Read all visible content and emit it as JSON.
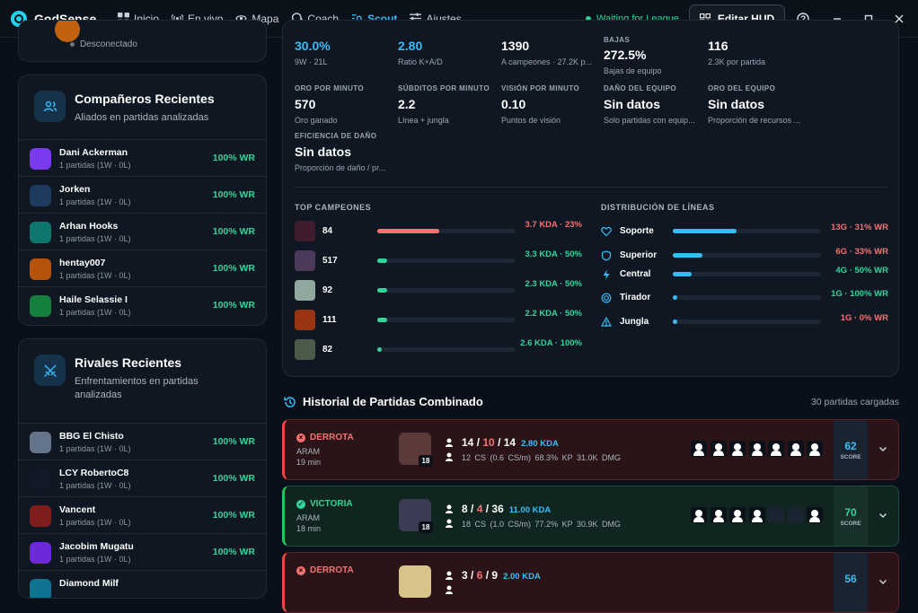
{
  "app": {
    "name": "GodSense",
    "status": "Waiting for League",
    "edit_hud": "Editar HUD"
  },
  "nav": [
    {
      "label": "Inicio",
      "icon": "grid-icon"
    },
    {
      "label": "En vivo",
      "icon": "broadcast-icon"
    },
    {
      "label": "Mapa",
      "icon": "eye-icon"
    },
    {
      "label": "Coach",
      "icon": "brain-icon"
    },
    {
      "label": "Scout",
      "icon": "scout-icon",
      "active": true
    },
    {
      "label": "Ajustes",
      "icon": "sliders-icon"
    }
  ],
  "profile": {
    "status": "Desconectado"
  },
  "allies": {
    "title": "Compañeros Recientes",
    "subtitle": "Aliados en partidas analizadas",
    "items": [
      {
        "name": "Dani Ackerman",
        "meta": "1 partidas (1W · 0L)",
        "wr": "100% WR",
        "color": "#7c3aed"
      },
      {
        "name": "Jorken",
        "meta": "1 partidas (1W · 0L)",
        "wr": "100% WR",
        "color": "#1e3a5f"
      },
      {
        "name": "Arhan Hooks",
        "meta": "1 partidas (1W · 0L)",
        "wr": "100% WR",
        "color": "#0f766e"
      },
      {
        "name": "hentay007",
        "meta": "1 partidas (1W · 0L)",
        "wr": "100% WR",
        "color": "#b45309"
      },
      {
        "name": "Haile Selassie I",
        "meta": "1 partidas (1W · 0L)",
        "wr": "100% WR",
        "color": "#15803d"
      }
    ]
  },
  "rivals": {
    "title": "Rivales Recientes",
    "subtitle": "Enfrentamientos en partidas analizadas",
    "items": [
      {
        "name": "BBG El Chisto",
        "meta": "1 partidas (1W · 0L)",
        "wr": "100% WR",
        "color": "#64748b"
      },
      {
        "name": "LCY RobertoC8",
        "meta": "1 partidas (1W · 0L)",
        "wr": "100% WR",
        "color": "#111827"
      },
      {
        "name": "Vancent",
        "meta": "1 partidas (1W · 0L)",
        "wr": "100% WR",
        "color": "#7f1d1d"
      },
      {
        "name": "Jacobim Mugatu",
        "meta": "1 partidas (1W · 0L)",
        "wr": "100% WR",
        "color": "#6d28d9"
      },
      {
        "name": "Diamond Milf",
        "meta": "",
        "wr": "",
        "color": "#0e7490"
      }
    ]
  },
  "stats": {
    "winrate": {
      "value": "30.0%",
      "sub": "9W · 21L"
    },
    "ratio": {
      "value": "2.80",
      "sub": "Ratio K+A/D"
    },
    "champs": {
      "value": "1390",
      "sub": "A campeones · 27.2K p..."
    },
    "bajas": {
      "label": "BAJAS",
      "value": "272.5%",
      "sub": "Bajas de equipo"
    },
    "partida": {
      "value": "116",
      "sub": "2.3K por partida"
    },
    "oro_min": {
      "label": "ORO POR MINUTO",
      "value": "570",
      "sub": "Oro ganado"
    },
    "subditos": {
      "label": "SÚBDITOS POR MINUTO",
      "value": "2.2",
      "sub": "Línea + jungla"
    },
    "vision": {
      "label": "VISIÓN POR MINUTO",
      "value": "0.10",
      "sub": "Puntos de visión"
    },
    "dano": {
      "label": "DAÑO DEL EQUIPO",
      "value": "Sin datos",
      "sub": "Solo partidas con equip..."
    },
    "oro_eq": {
      "label": "ORO DEL EQUIPO",
      "value": "Sin datos",
      "sub": "Proporción de recursos ..."
    },
    "eficiencia": {
      "label": "EFICIENCIA DE DAÑO",
      "value": "Sin datos",
      "sub": "Proporción de daño / pr..."
    }
  },
  "top_champs": {
    "title": "TOP CAMPEONES",
    "items": [
      {
        "games": "84",
        "kda": "3.7 KDA · 23%",
        "fill": 0.45,
        "bar": "#f87171",
        "kda_color": "red",
        "color": "#3f1d2e"
      },
      {
        "games": "517",
        "kda": "3.3 KDA · 50%",
        "fill": 0.07,
        "bar": "#34d399",
        "kda_color": "green",
        "color": "#4b3a5a"
      },
      {
        "games": "92",
        "kda": "2.3 KDA · 50%",
        "fill": 0.07,
        "bar": "#34d399",
        "kda_color": "green",
        "color": "#8fa79c"
      },
      {
        "games": "111",
        "kda": "2.2 KDA · 50%",
        "fill": 0.07,
        "bar": "#34d399",
        "kda_color": "green",
        "color": "#9a3412"
      },
      {
        "games": "82",
        "kda": "2.6 KDA · 100%",
        "fill": 0.03,
        "bar": "#34d399",
        "kda_color": "green",
        "color": "#4b5b4a"
      }
    ]
  },
  "lanes": {
    "title": "DISTRIBUCIÓN DE LÍNEAS",
    "items": [
      {
        "name": "Soporte",
        "value": "13G · 31% WR",
        "fill": 0.43,
        "val_color": "red",
        "icon": "heart-icon"
      },
      {
        "name": "Superior",
        "value": "6G · 33% WR",
        "fill": 0.2,
        "val_color": "red",
        "icon": "shield-icon"
      },
      {
        "name": "Central",
        "value": "4G · 50% WR",
        "fill": 0.13,
        "val_color": "green",
        "icon": "bolt-icon"
      },
      {
        "name": "Tirador",
        "value": "1G · 100% WR",
        "fill": 0.03,
        "val_color": "green",
        "icon": "target-icon"
      },
      {
        "name": "Jungla",
        "value": "1G · 0% WR",
        "fill": 0.03,
        "val_color": "red",
        "icon": "tree-icon"
      }
    ]
  },
  "history": {
    "title": "Historial de Partidas Combinado",
    "count": "30 partidas cargadas",
    "matches": [
      {
        "result": "DERROTA",
        "win": false,
        "mode": "ARAM",
        "duration": "19 min",
        "level": "18",
        "k": "14",
        "d": "10",
        "a": "14",
        "kda": "2.80 KDA",
        "cs": "12 CS (0.6 CS/m)",
        "kp": "68.3% KP",
        "dmg": "31.0K DMG",
        "score": "62",
        "score_label": "SCORE",
        "champ_color": "#5b3a3a",
        "team": "ppppppp"
      },
      {
        "result": "VICTORIA",
        "win": true,
        "mode": "ARAM",
        "duration": "18 min",
        "level": "18",
        "k": "8",
        "d": "4",
        "a": "36",
        "kda": "11.00 KDA",
        "cs": "18 CS (1.0 CS/m)",
        "kp": "77.2% KP",
        "dmg": "30.9K DMG",
        "score": "70",
        "score_label": "SCORE",
        "champ_color": "#3b3b55",
        "team": "ppppeep"
      },
      {
        "result": "DERROTA",
        "win": false,
        "mode": "",
        "duration": "",
        "level": "",
        "k": "3",
        "d": "6",
        "a": "9",
        "kda": "2.00 KDA",
        "cs": "",
        "kp": "",
        "dmg": "",
        "score": "56",
        "score_label": "",
        "champ_color": "#d6c48a",
        "team": ""
      }
    ]
  },
  "colors": {
    "accent": "#38bdf8",
    "win": "#34d399",
    "loss": "#f87171",
    "bg": "#0a1019"
  }
}
